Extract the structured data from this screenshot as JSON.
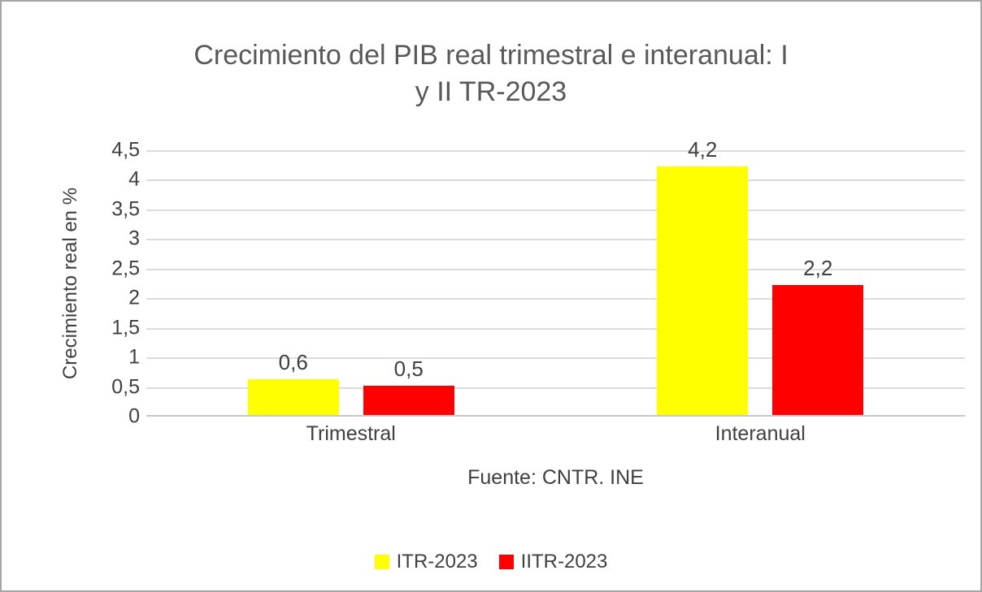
{
  "chart_data": {
    "type": "bar",
    "title": "Crecimiento del PIB real trimestral e interanual: I y II TR-2023",
    "title_lines": [
      "Crecimiento del PIB real trimestral e interanual: I",
      "y II TR-2023"
    ],
    "ylabel": "Crecimiento real en %",
    "xlabel": "",
    "categories": [
      "Trimestral",
      "Interanual"
    ],
    "series": [
      {
        "name": "ITR-2023",
        "color": "#FFFF00",
        "values": [
          0.6,
          4.2
        ],
        "labels": [
          "0,6",
          "4,2"
        ]
      },
      {
        "name": "IITR-2023",
        "color": "#FF0000",
        "values": [
          0.5,
          2.2
        ],
        "labels": [
          "0,5",
          "2,2"
        ]
      }
    ],
    "ylim": [
      0,
      4.5
    ],
    "ytick_step": 0.5,
    "yticks": [
      "0",
      "0,5",
      "1",
      "1,5",
      "2",
      "2,5",
      "3",
      "3,5",
      "4",
      "4,5"
    ],
    "grid": true,
    "legend_position": "bottom",
    "source_note": "Fuente: CNTR. INE"
  },
  "colors": {
    "title": "#595959",
    "text": "#404040",
    "gridline": "#dcdcdc",
    "axis_line": "#c9c9c9",
    "frame_border": "#a6a6a6",
    "background": "#ffffff"
  }
}
